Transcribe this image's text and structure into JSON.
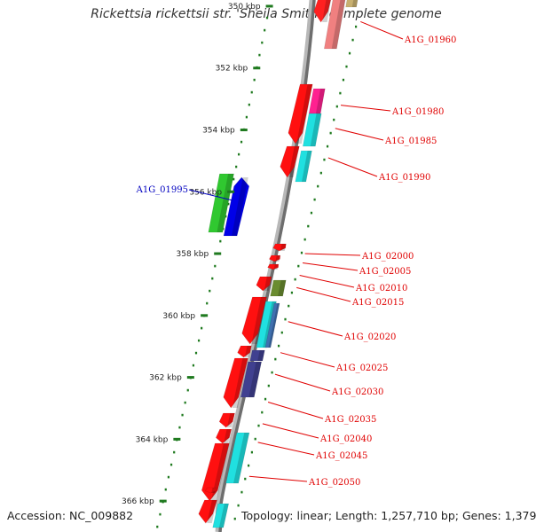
{
  "title": "Rickettsia rickettsii str. 'Sheila Smith', complete genome",
  "accession": "Accession: NC_009882",
  "topology": "Topology: linear; Length: 1,257,710 bp; Genes: 1,379",
  "colors": {
    "backbone": "#7a7a7a",
    "tick": "#1f7a1f",
    "label_red": "#e00000",
    "label_blue": "#0000c0"
  },
  "bp_range": [
    349800,
    367000
  ],
  "ticks": [
    {
      "bp": 350000,
      "label": "350 kbp"
    },
    {
      "bp": 352000,
      "label": "352 kbp"
    },
    {
      "bp": 354000,
      "label": "354 kbp"
    },
    {
      "bp": 356000,
      "label": "356 kbp"
    },
    {
      "bp": 358000,
      "label": "358 kbp"
    },
    {
      "bp": 360000,
      "label": "360 kbp"
    },
    {
      "bp": 362000,
      "label": "362 kbp"
    },
    {
      "bp": 364000,
      "label": "364 kbp"
    },
    {
      "bp": 366000,
      "label": "366 kbp"
    }
  ],
  "labels": [
    {
      "text": "A1G_01960",
      "side": "right",
      "color": "red",
      "bp": 350500
    },
    {
      "text": "A1G_01980",
      "side": "right",
      "color": "red",
      "bp": 353200
    },
    {
      "text": "A1G_01985",
      "side": "right",
      "color": "red",
      "bp": 353950
    },
    {
      "text": "A1G_01990",
      "side": "right",
      "color": "red",
      "bp": 354900
    },
    {
      "text": "A1G_01995",
      "side": "left",
      "color": "blue",
      "bp": 356200
    },
    {
      "text": "A1G_02000",
      "side": "right",
      "color": "red",
      "bp": 358000
    },
    {
      "text": "A1G_02005",
      "side": "right",
      "color": "red",
      "bp": 358300
    },
    {
      "text": "A1G_02010",
      "side": "right",
      "color": "red",
      "bp": 358700
    },
    {
      "text": "A1G_02015",
      "side": "right",
      "color": "red",
      "bp": 359100
    },
    {
      "text": "A1G_02020",
      "side": "right",
      "color": "red",
      "bp": 360200
    },
    {
      "text": "A1G_02025",
      "side": "right",
      "color": "red",
      "bp": 361200
    },
    {
      "text": "A1G_02030",
      "side": "right",
      "color": "red",
      "bp": 361900
    },
    {
      "text": "A1G_02035",
      "side": "right",
      "color": "red",
      "bp": 362800
    },
    {
      "text": "A1G_02040",
      "side": "right",
      "color": "red",
      "bp": 363500
    },
    {
      "text": "A1G_02045",
      "side": "right",
      "color": "red",
      "bp": 364100
    },
    {
      "text": "A1G_02050",
      "side": "right",
      "color": "red",
      "bp": 365200
    }
  ]
}
